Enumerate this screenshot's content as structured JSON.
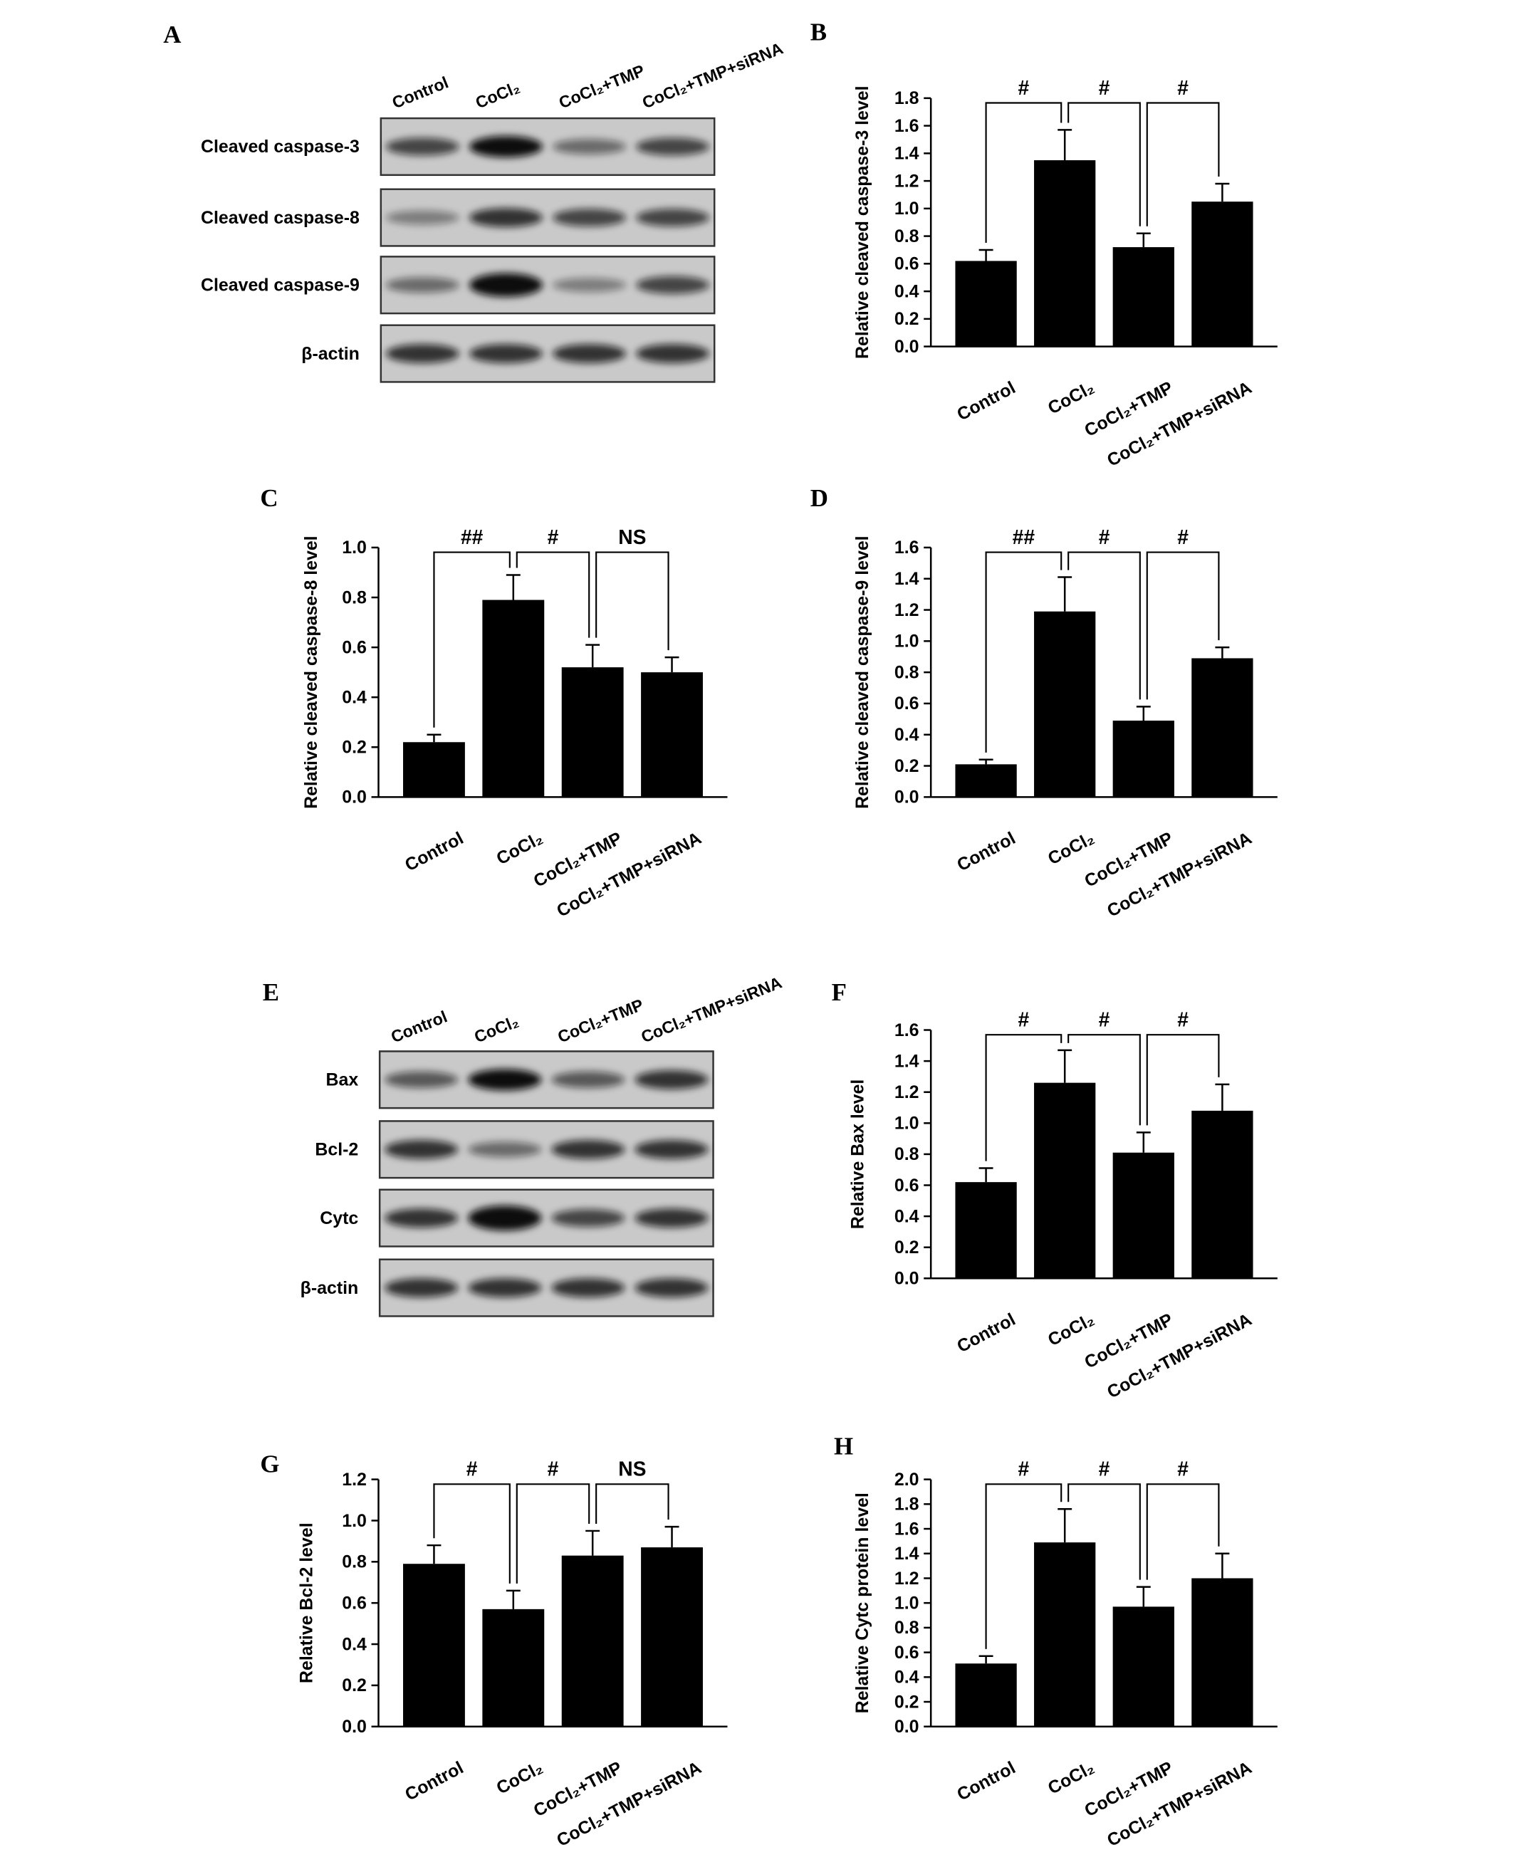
{
  "chart_data": [
    {
      "type": "bar",
      "panel": "B",
      "ylabel": "Relative cleaved caspase-3 level",
      "color": "#000000",
      "categories": [
        "Control",
        "CoCl₂",
        "CoCl₂+TMP",
        "CoCl₂+TMP+siRNA"
      ],
      "values": [
        0.62,
        1.35,
        0.72,
        1.05
      ],
      "errors": [
        0.08,
        0.22,
        0.1,
        0.13
      ],
      "brackets": [
        "#",
        "#",
        "#"
      ],
      "ylim": [
        0,
        1.8
      ],
      "yticks": [
        {
          "value": 0,
          "label": "0.0"
        },
        {
          "value": 0.2,
          "label": "0.2"
        },
        {
          "value": 0.4,
          "label": "0.4"
        },
        {
          "value": 0.6,
          "label": "0.6"
        },
        {
          "value": 0.8,
          "label": "0.8"
        },
        {
          "value": 1,
          "label": "1.0"
        },
        {
          "value": 1.2,
          "label": "1.2"
        },
        {
          "value": 1.4,
          "label": "1.4"
        },
        {
          "value": 1.6,
          "label": "1.6"
        },
        {
          "value": 1.8,
          "label": "1.8"
        }
      ]
    },
    {
      "type": "bar",
      "panel": "C",
      "ylabel": "Relative cleaved caspase-8 level",
      "color": "#000000",
      "categories": [
        "Control",
        "CoCl₂",
        "CoCl₂+TMP",
        "CoCl₂+TMP+siRNA"
      ],
      "values": [
        0.22,
        0.79,
        0.52,
        0.5
      ],
      "errors": [
        0.03,
        0.1,
        0.09,
        0.06
      ],
      "brackets": [
        "##",
        "#",
        "NS"
      ],
      "ylim": [
        0,
        1.0
      ],
      "yticks": [
        {
          "value": 0,
          "label": "0.0"
        },
        {
          "value": 0.2,
          "label": "0.2"
        },
        {
          "value": 0.4,
          "label": "0.4"
        },
        {
          "value": 0.6,
          "label": "0.6"
        },
        {
          "value": 0.8,
          "label": "0.8"
        },
        {
          "value": 1,
          "label": "1.0"
        }
      ]
    },
    {
      "type": "bar",
      "panel": "D",
      "ylabel": "Relative cleaved caspase-9 level",
      "color": "#000000",
      "categories": [
        "Control",
        "CoCl₂",
        "CoCl₂+TMP",
        "CoCl₂+TMP+siRNA"
      ],
      "values": [
        0.21,
        1.19,
        0.49,
        0.89
      ],
      "errors": [
        0.03,
        0.22,
        0.09,
        0.07
      ],
      "brackets": [
        "##",
        "#",
        "#"
      ],
      "ylim": [
        0,
        1.6
      ],
      "yticks": [
        {
          "value": 0,
          "label": "0.0"
        },
        {
          "value": 0.2,
          "label": "0.2"
        },
        {
          "value": 0.4,
          "label": "0.4"
        },
        {
          "value": 0.6,
          "label": "0.6"
        },
        {
          "value": 0.8,
          "label": "0.8"
        },
        {
          "value": 1,
          "label": "1.0"
        },
        {
          "value": 1.2,
          "label": "1.2"
        },
        {
          "value": 1.4,
          "label": "1.4"
        },
        {
          "value": 1.6,
          "label": "1.6"
        }
      ]
    },
    {
      "type": "bar",
      "panel": "F",
      "ylabel": "Relative Bax level",
      "color": "#000000",
      "categories": [
        "Control",
        "CoCl₂",
        "CoCl₂+TMP",
        "CoCl₂+TMP+siRNA"
      ],
      "values": [
        0.62,
        1.26,
        0.81,
        1.08
      ],
      "errors": [
        0.09,
        0.21,
        0.13,
        0.17
      ],
      "brackets": [
        "#",
        "#",
        "#"
      ],
      "ylim": [
        0,
        1.6
      ],
      "yticks": [
        {
          "value": 0,
          "label": "0.0"
        },
        {
          "value": 0.2,
          "label": "0.2"
        },
        {
          "value": 0.4,
          "label": "0.4"
        },
        {
          "value": 0.6,
          "label": "0.6"
        },
        {
          "value": 0.8,
          "label": "0.8"
        },
        {
          "value": 1,
          "label": "1.0"
        },
        {
          "value": 1.2,
          "label": "1.2"
        },
        {
          "value": 1.4,
          "label": "1.4"
        },
        {
          "value": 1.6,
          "label": "1.6"
        }
      ]
    },
    {
      "type": "bar",
      "panel": "G",
      "ylabel": "Relative Bcl-2 level",
      "color": "#000000",
      "categories": [
        "Control",
        "CoCl₂",
        "CoCl₂+TMP",
        "CoCl₂+TMP+siRNA"
      ],
      "values": [
        0.79,
        0.57,
        0.83,
        0.87
      ],
      "errors": [
        0.09,
        0.09,
        0.12,
        0.1
      ],
      "brackets": [
        "#",
        "#",
        "NS"
      ],
      "ylim": [
        0,
        1.2
      ],
      "yticks": [
        {
          "value": 0,
          "label": "0.0"
        },
        {
          "value": 0.2,
          "label": "0.2"
        },
        {
          "value": 0.4,
          "label": "0.4"
        },
        {
          "value": 0.6,
          "label": "0.6"
        },
        {
          "value": 0.8,
          "label": "0.8"
        },
        {
          "value": 1,
          "label": "1.0"
        },
        {
          "value": 1.2,
          "label": "1.2"
        }
      ]
    },
    {
      "type": "bar",
      "panel": "H",
      "ylabel": "Relative Cytc protein level",
      "color": "#000000",
      "categories": [
        "Control",
        "CoCl₂",
        "CoCl₂+TMP",
        "CoCl₂+TMP+siRNA"
      ],
      "values": [
        0.51,
        1.49,
        0.97,
        1.2
      ],
      "errors": [
        0.06,
        0.27,
        0.16,
        0.2
      ],
      "brackets": [
        "#",
        "#",
        "#"
      ],
      "ylim": [
        0,
        2.0
      ],
      "yticks": [
        {
          "value": 0,
          "label": "0.0"
        },
        {
          "value": 0.2,
          "label": "0.2"
        },
        {
          "value": 0.4,
          "label": "0.4"
        },
        {
          "value": 0.6,
          "label": "0.6"
        },
        {
          "value": 0.8,
          "label": "0.8"
        },
        {
          "value": 1,
          "label": "1.0"
        },
        {
          "value": 1.2,
          "label": "1.2"
        },
        {
          "value": 1.4,
          "label": "1.4"
        },
        {
          "value": 1.6,
          "label": "1.6"
        },
        {
          "value": 1.8,
          "label": "1.8"
        },
        {
          "value": 2,
          "label": "2.0"
        }
      ]
    }
  ],
  "blots": [
    {
      "panel": "A",
      "lanes": [
        "Control",
        "CoCl₂",
        "CoCl₂+TMP",
        "CoCl₂+TMP+siRNA"
      ],
      "rows": [
        "Cleaved caspase-3",
        "Cleaved caspase-8",
        "Cleaved caspase-9",
        "β-actin"
      ]
    },
    {
      "panel": "E",
      "lanes": [
        "Control",
        "CoCl₂",
        "CoCl₂+TMP",
        "CoCl₂+TMP+siRNA"
      ],
      "rows": [
        "Bax",
        "Bcl-2",
        "Cytc",
        "β-actin"
      ]
    }
  ]
}
